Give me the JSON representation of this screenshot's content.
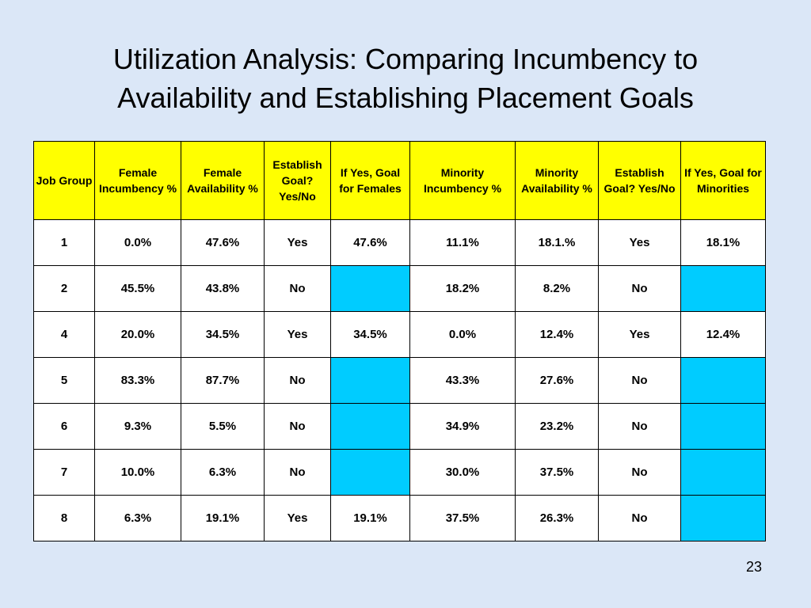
{
  "title_lines": [
    "Utilization Analysis: Comparing Incumbency to",
    "Availability and Establishing Placement Goals"
  ],
  "table": {
    "headers": [
      "Job Group",
      "Female Incumbency %",
      "Female Availability %",
      "Establish Goal? Yes/No",
      "If Yes, Goal for Females",
      "Minority Incumbency %",
      "Minority Availability %",
      "Establish Goal? Yes/No",
      "If Yes, Goal for Minorities"
    ],
    "rows": [
      [
        "1",
        "0.0%",
        "47.6%",
        "Yes",
        "47.6%",
        "11.1%",
        "18.1.%",
        "Yes",
        "18.1%"
      ],
      [
        "2",
        "45.5%",
        "43.8%",
        "No",
        "",
        "18.2%",
        "8.2%",
        "No",
        ""
      ],
      [
        "4",
        "20.0%",
        "34.5%",
        "Yes",
        "34.5%",
        "0.0%",
        "12.4%",
        "Yes",
        "12.4%"
      ],
      [
        "5",
        "83.3%",
        "87.7%",
        "No",
        "",
        "43.3%",
        "27.6%",
        "No",
        ""
      ],
      [
        "6",
        "9.3%",
        "5.5%",
        "No",
        "",
        "34.9%",
        "23.2%",
        "No",
        ""
      ],
      [
        "7",
        "10.0%",
        "6.3%",
        "No",
        "",
        "30.0%",
        "37.5%",
        "No",
        ""
      ],
      [
        "8",
        "6.3%",
        "19.1%",
        "Yes",
        "19.1%",
        "37.5%",
        "26.3%",
        "No",
        ""
      ]
    ]
  },
  "colors": {
    "background": "#dbe7f7",
    "header_fill": "#ffff00",
    "empty_goal_fill": "#00ccff"
  },
  "page_number": "23"
}
